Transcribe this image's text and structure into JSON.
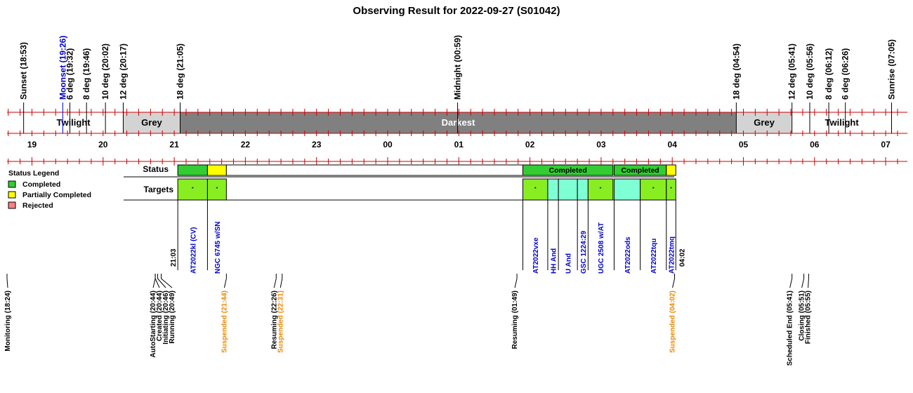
{
  "title": "Observing Result for 2022-09-27 (S01042)",
  "timeline": {
    "hours": [
      "19",
      "20",
      "21",
      "22",
      "23",
      "00",
      "01",
      "02",
      "03",
      "04",
      "05",
      "06",
      "07"
    ],
    "hour_hours": [
      19,
      20,
      21,
      22,
      23,
      24,
      25,
      26,
      27,
      28,
      29,
      30,
      31
    ],
    "sun_markers": [
      {
        "label": "Sunset (18:53)",
        "t": 18.883,
        "color": "#000000"
      },
      {
        "label": "Moonset (19:26)",
        "t": 19.433,
        "color": "#0000cc"
      },
      {
        "label": "6 deg (19:32)",
        "t": 19.533,
        "color": "#000000"
      },
      {
        "label": "8 deg (19:46)",
        "t": 19.767,
        "color": "#000000"
      },
      {
        "label": "10 deg (20:02)",
        "t": 20.033,
        "color": "#000000"
      },
      {
        "label": "12 deg (20:17)",
        "t": 20.283,
        "color": "#000000"
      },
      {
        "label": "18 deg (21:05)",
        "t": 21.083,
        "color": "#000000"
      },
      {
        "label": "Midnight (00:59)",
        "t": 24.983,
        "color": "#000000"
      },
      {
        "label": "18 deg (04:54)",
        "t": 28.9,
        "color": "#000000"
      },
      {
        "label": "12 deg (05:41)",
        "t": 29.683,
        "color": "#000000"
      },
      {
        "label": "10 deg (05:56)",
        "t": 29.933,
        "color": "#000000"
      },
      {
        "label": "8 deg (06:12)",
        "t": 30.2,
        "color": "#000000"
      },
      {
        "label": "6 deg (06:26)",
        "t": 30.433,
        "color": "#000000"
      },
      {
        "label": "Sunrise (07:05)",
        "t": 31.083,
        "color": "#000000"
      }
    ],
    "bands": [
      {
        "label": "Twilight",
        "start": 18.883,
        "end": 20.283,
        "color": "#ffffff",
        "text": "#000000"
      },
      {
        "label": "Grey",
        "start": 20.283,
        "end": 21.083,
        "color": "#d3d3d3",
        "text": "#000000"
      },
      {
        "label": "Darkest",
        "start": 21.083,
        "end": 28.9,
        "color": "#808080",
        "text": "#ffffff"
      },
      {
        "label": "Grey",
        "start": 28.9,
        "end": 29.683,
        "color": "#d3d3d3",
        "text": "#000000"
      },
      {
        "label": "Twilight",
        "start": 29.683,
        "end": 31.083,
        "color": "#ffffff",
        "text": "#000000"
      }
    ]
  },
  "legend": {
    "title": "Status Legend",
    "items": [
      {
        "label": "Completed",
        "color": "#33cc33"
      },
      {
        "label": "Partially Completed",
        "color": "#ffff00"
      },
      {
        "label": "Rejected",
        "color": "#ff8080"
      }
    ]
  },
  "rows": {
    "status": "Status",
    "targets": "Targets"
  },
  "chart_data": {
    "type": "timeline",
    "title": "Observing Result for 2022-09-27 (S01042)",
    "window_start": "21:03",
    "window_end": "04:02",
    "status_blocks": [
      {
        "start": 21.05,
        "end": 21.467,
        "color": "#33cc33",
        "label": ""
      },
      {
        "start": 21.467,
        "end": 21.733,
        "color": "#ffff00",
        "label": ""
      },
      {
        "start": 21.733,
        "end": 25.9,
        "color": "#ffffff",
        "label": ""
      },
      {
        "start": 25.9,
        "end": 27.167,
        "color": "#33cc33",
        "label": "Completed"
      },
      {
        "start": 27.183,
        "end": 27.917,
        "color": "#33cc33",
        "label": "Completed"
      },
      {
        "start": 27.917,
        "end": 28.05,
        "color": "#ffff00",
        "label": ""
      }
    ],
    "targets": [
      {
        "name": "AT2022kl (CV)",
        "start": 21.05,
        "end": 21.467,
        "color": "#88ee22",
        "mark": "*",
        "label_color": "#0000cc"
      },
      {
        "name": "NGC 6745 w/SN",
        "start": 21.467,
        "end": 21.733,
        "color": "#88ee22",
        "mark": "*",
        "label_color": "#0000cc"
      },
      {
        "name": "AT2022vxe",
        "start": 25.9,
        "end": 26.25,
        "color": "#88ee22",
        "mark": "*",
        "label_color": "#0000cc"
      },
      {
        "name": "HH And",
        "start": 26.25,
        "end": 26.4,
        "color": "#7fffd4",
        "mark": "",
        "label_color": "#0000cc"
      },
      {
        "name": "U And",
        "start": 26.4,
        "end": 26.667,
        "color": "#7fffd4",
        "mark": "",
        "label_color": "#0000cc"
      },
      {
        "name": "GSC 1224:29",
        "start": 26.667,
        "end": 26.817,
        "color": "#7fffd4",
        "mark": "",
        "label_color": "#0000cc"
      },
      {
        "name": "UGC 2508 w/AT",
        "start": 26.817,
        "end": 27.167,
        "color": "#88ee22",
        "mark": "*",
        "label_color": "#0000cc"
      },
      {
        "name": "AT2022ods",
        "start": 27.183,
        "end": 27.55,
        "color": "#7fffd4",
        "mark": "",
        "label_color": "#0000cc"
      },
      {
        "name": "AT2022tqu",
        "start": 27.55,
        "end": 27.917,
        "color": "#88ee22",
        "mark": "*",
        "label_color": "#0000cc"
      },
      {
        "name": "AT2022tmq",
        "start": 27.917,
        "end": 28.05,
        "color": "#88ee22",
        "mark": "*",
        "label_color": "#0000cc"
      }
    ],
    "events": [
      {
        "label": "Monitoring (18:24)",
        "t": 18.4,
        "color": "#000000"
      },
      {
        "label": "AutoStarting (20:44)",
        "t": 20.733,
        "color": "#000000"
      },
      {
        "label": "Created (20:44)",
        "t": 20.733,
        "color": "#000000"
      },
      {
        "label": "Initiating (20:46)",
        "t": 20.767,
        "color": "#000000"
      },
      {
        "label": "Running (20:49)",
        "t": 20.817,
        "color": "#000000"
      },
      {
        "label": "Suspended (21:44)",
        "t": 21.733,
        "color": "#ee8800"
      },
      {
        "label": "Resuming (22:26)",
        "t": 22.433,
        "color": "#000000"
      },
      {
        "label": "Suspended (22:31)",
        "t": 22.517,
        "color": "#ee8800"
      },
      {
        "label": "Resuming (01:49)",
        "t": 25.817,
        "color": "#000000"
      },
      {
        "label": "Suspended (04:02)",
        "t": 28.033,
        "color": "#ee8800"
      },
      {
        "label": "Scheduled End (05:41)",
        "t": 29.683,
        "color": "#000000"
      },
      {
        "label": "Closing (05:51)",
        "t": 29.85,
        "color": "#000000"
      },
      {
        "label": "Finished (05:55)",
        "t": 29.917,
        "color": "#000000"
      }
    ]
  }
}
